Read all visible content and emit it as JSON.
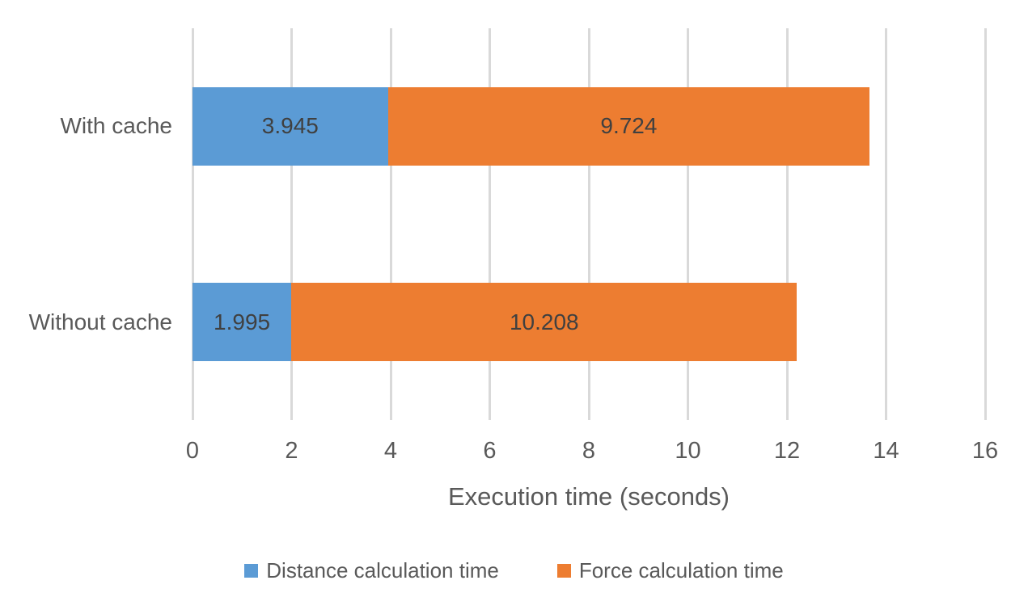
{
  "chart_data": {
    "type": "bar",
    "orientation": "horizontal",
    "stacked": true,
    "categories": [
      "With cache",
      "Without cache"
    ],
    "series": [
      {
        "name": "Distance calculation time",
        "color": "#5B9BD5",
        "values": [
          3.945,
          1.995
        ],
        "labels": [
          "3.945",
          "1.995"
        ]
      },
      {
        "name": "Force calculation time",
        "color": "#ED7D31",
        "values": [
          9.724,
          10.208
        ],
        "labels": [
          "9.724",
          "10.208"
        ]
      }
    ],
    "xlabel": "Execution time (seconds)",
    "xlim": [
      0,
      16
    ],
    "xticks": [
      0,
      2,
      4,
      6,
      8,
      10,
      12,
      14,
      16
    ],
    "grid": true,
    "legend_position": "bottom"
  },
  "style": {
    "background": "#FFFFFF",
    "gridline_color": "#D9D9D9",
    "axis_text_color": "#595959",
    "data_label_color": "#404040"
  }
}
